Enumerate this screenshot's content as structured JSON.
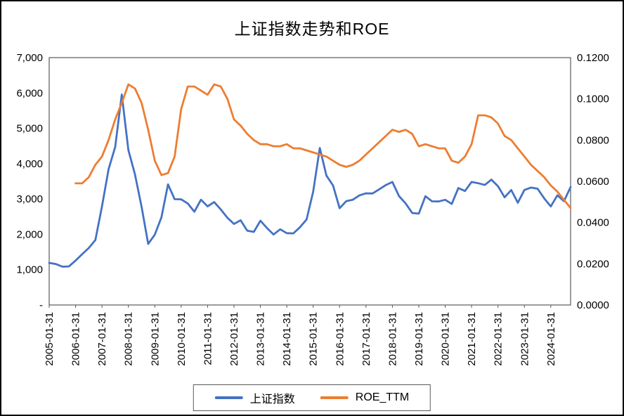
{
  "title": "上证指数走势和ROE",
  "legend": {
    "series1": "上证指数",
    "series2": "ROE_TTM"
  },
  "colors": {
    "index_line": "#4472C4",
    "roe_line": "#ED7D31",
    "frame": "#595959",
    "text": "#000000"
  },
  "chart_data": {
    "type": "line",
    "title": "上证指数走势和ROE",
    "grid": false,
    "legend_position": "bottom",
    "x": [
      "2005-01",
      "2005-04",
      "2005-07",
      "2005-10",
      "2006-01",
      "2006-04",
      "2006-07",
      "2006-10",
      "2007-01",
      "2007-04",
      "2007-07",
      "2007-10",
      "2008-01",
      "2008-04",
      "2008-07",
      "2008-10",
      "2009-01",
      "2009-04",
      "2009-07",
      "2009-10",
      "2010-01",
      "2010-04",
      "2010-07",
      "2010-10",
      "2011-01",
      "2011-04",
      "2011-07",
      "2011-10",
      "2012-01",
      "2012-04",
      "2012-07",
      "2012-10",
      "2013-01",
      "2013-04",
      "2013-07",
      "2013-10",
      "2014-01",
      "2014-04",
      "2014-07",
      "2014-10",
      "2015-01",
      "2015-04",
      "2015-07",
      "2015-10",
      "2016-01",
      "2016-04",
      "2016-07",
      "2016-10",
      "2017-01",
      "2017-04",
      "2017-07",
      "2017-10",
      "2018-01",
      "2018-04",
      "2018-07",
      "2018-10",
      "2019-01",
      "2019-04",
      "2019-07",
      "2019-10",
      "2020-01",
      "2020-04",
      "2020-07",
      "2020-10",
      "2021-01",
      "2021-04",
      "2021-07",
      "2021-10",
      "2022-01",
      "2022-04",
      "2022-07",
      "2022-10",
      "2023-01",
      "2023-04",
      "2023-07",
      "2023-10",
      "2024-01",
      "2024-04",
      "2024-07",
      "2024-10"
    ],
    "series": [
      {
        "name": "上证指数",
        "axis": "left",
        "color": "#4472C4",
        "values": [
          1192,
          1159,
          1083,
          1092,
          1258,
          1440,
          1613,
          1837,
          2786,
          3841,
          4471,
          5955,
          4383,
          3693,
          2776,
          1729,
          1991,
          2478,
          3412,
          2995,
          2989,
          2871,
          2638,
          2979,
          2790,
          2911,
          2702,
          2468,
          2293,
          2396,
          2104,
          2068,
          2385,
          2178,
          1994,
          2141,
          2033,
          2026,
          2201,
          2420,
          3210,
          4442,
          3664,
          3383,
          2738,
          2938,
          2979,
          3100,
          3159,
          3155,
          3273,
          3393,
          3481,
          3082,
          2876,
          2603,
          2585,
          3078,
          2933,
          2929,
          2977,
          2860,
          3310,
          3225,
          3483,
          3447,
          3397,
          3547,
          3361,
          3047,
          3253,
          2893,
          3256,
          3323,
          3291,
          3019,
          2789,
          3105,
          2938,
          3336
        ]
      },
      {
        "name": "ROE_TTM",
        "axis": "right",
        "color": "#ED7D31",
        "values": [
          null,
          null,
          null,
          null,
          0.059,
          0.059,
          0.062,
          0.068,
          0.072,
          0.08,
          0.09,
          0.098,
          0.107,
          0.105,
          0.098,
          0.085,
          0.07,
          0.063,
          0.064,
          0.072,
          0.095,
          0.106,
          0.106,
          0.104,
          0.102,
          0.107,
          0.106,
          0.1,
          0.09,
          0.087,
          0.083,
          0.08,
          0.078,
          0.078,
          0.077,
          0.077,
          0.078,
          0.076,
          0.076,
          0.075,
          0.074,
          0.073,
          0.072,
          0.07,
          0.068,
          0.067,
          0.068,
          0.07,
          0.073,
          0.076,
          0.079,
          0.082,
          0.085,
          0.084,
          0.085,
          0.083,
          0.077,
          0.078,
          0.077,
          0.076,
          0.076,
          0.07,
          0.069,
          0.072,
          0.078,
          0.092,
          0.092,
          0.091,
          0.088,
          0.082,
          0.08,
          0.076,
          0.072,
          0.068,
          0.065,
          0.062,
          0.058,
          0.055,
          0.051,
          0.047
        ]
      }
    ],
    "left_axis": {
      "min": 0,
      "max": 7000,
      "tick_step": 1000,
      "tick_labels": [
        "-",
        "1,000",
        "2,000",
        "3,000",
        "4,000",
        "5,000",
        "6,000",
        "7,000"
      ]
    },
    "right_axis": {
      "min": 0,
      "max": 0.12,
      "tick_step": 0.02,
      "tick_labels": [
        "0.0000",
        "0.0200",
        "0.0400",
        "0.0600",
        "0.0800",
        "0.1000",
        "0.1200"
      ]
    },
    "x_tick_labels": [
      "2005-01-31",
      "2006-01-31",
      "2007-01-31",
      "2008-01-31",
      "2009-01-31",
      "2010-01-31",
      "2011-01-31",
      "2012-01-31",
      "2013-01-31",
      "2014-01-31",
      "2015-01-31",
      "2016-01-31",
      "2017-01-31",
      "2018-01-31",
      "2019-01-31",
      "2020-01-31",
      "2021-01-31",
      "2022-01-31",
      "2023-01-31",
      "2024-01-31"
    ]
  }
}
